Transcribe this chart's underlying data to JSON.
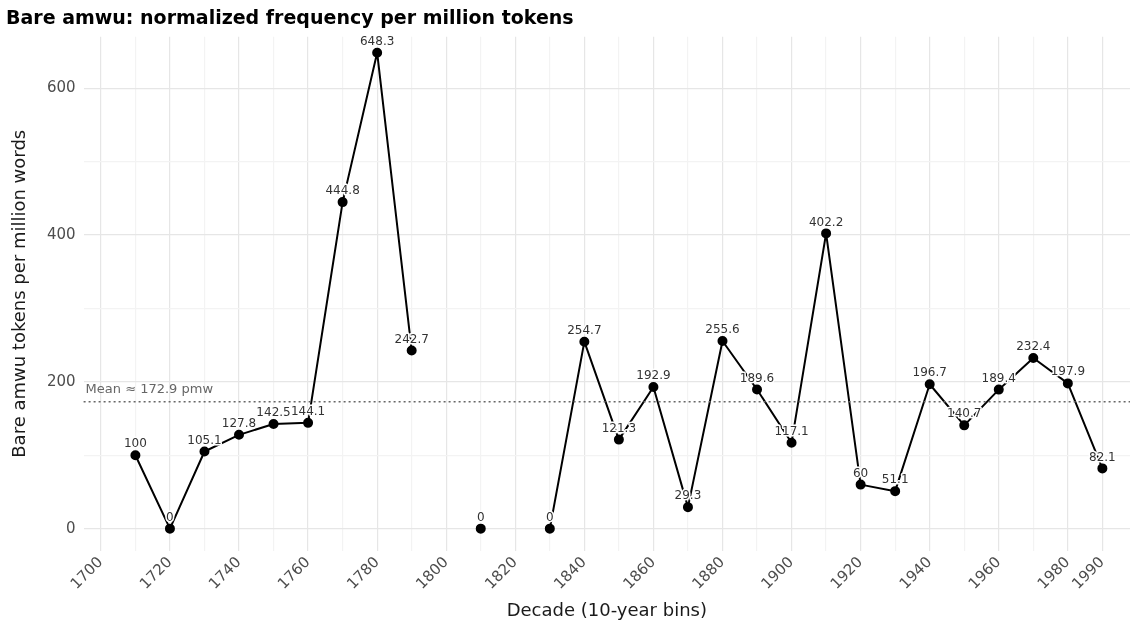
{
  "chart_data": {
    "type": "line",
    "title": "Bare amwu: normalized frequency per million tokens",
    "xlabel": "Decade (10-year bins)",
    "ylabel": "Bare amwu tokens per million words",
    "x": [
      1710,
      1720,
      1730,
      1740,
      1750,
      1760,
      1770,
      1780,
      1790,
      1800,
      1810,
      1820,
      1830,
      1840,
      1850,
      1860,
      1870,
      1880,
      1890,
      1900,
      1910,
      1920,
      1930,
      1940,
      1950,
      1960,
      1970,
      1980,
      1990
    ],
    "series": [
      {
        "color": "#000000",
        "values": [
          100,
          0,
          105.1,
          127.8,
          142.5,
          144.1,
          444.8,
          648.3,
          242.7,
          null,
          0,
          null,
          0,
          254.7,
          121.3,
          192.9,
          29.3,
          255.6,
          189.6,
          117.1,
          402.2,
          60,
          51.1,
          196.7,
          140.7,
          189.4,
          232.4,
          197.9,
          82.1
        ]
      }
    ],
    "xlim": [
      1695,
      1998
    ],
    "xticks": [
      1700,
      {
        "value": 1710,
        "label": null
      },
      1720,
      {
        "value": 1730,
        "label": null
      },
      1740,
      {
        "value": 1750,
        "label": null
      },
      1760,
      {
        "value": 1770,
        "label": null
      },
      1780,
      {
        "value": 1790,
        "label": null
      },
      1800,
      {
        "value": 1810,
        "label": null
      },
      1820,
      {
        "value": 1830,
        "label": null
      },
      1840,
      {
        "value": 1850,
        "label": null
      },
      1860,
      {
        "value": 1870,
        "label": null
      },
      1880,
      {
        "value": 1890,
        "label": null
      },
      1900,
      {
        "value": 1910,
        "label": null
      },
      1920,
      {
        "value": 1930,
        "label": null
      },
      1940,
      {
        "value": 1950,
        "label": null
      },
      1960,
      {
        "value": 1970,
        "label": null
      },
      1980,
      1990
    ],
    "ylim": [
      -30,
      670
    ],
    "yticks": [
      0,
      {
        "value": 100,
        "label": null
      },
      200,
      {
        "value": 300,
        "label": null
      },
      400,
      {
        "value": 500,
        "label": null
      },
      600
    ],
    "grid": true,
    "marker": "circle",
    "line_style": "solid",
    "data_labels": true,
    "ref_lines": [
      {
        "axis": "y",
        "value": 172.9,
        "label": "Mean ≈ 172.9 pmw",
        "color": "#666666",
        "line_style": "dotted"
      }
    ]
  }
}
